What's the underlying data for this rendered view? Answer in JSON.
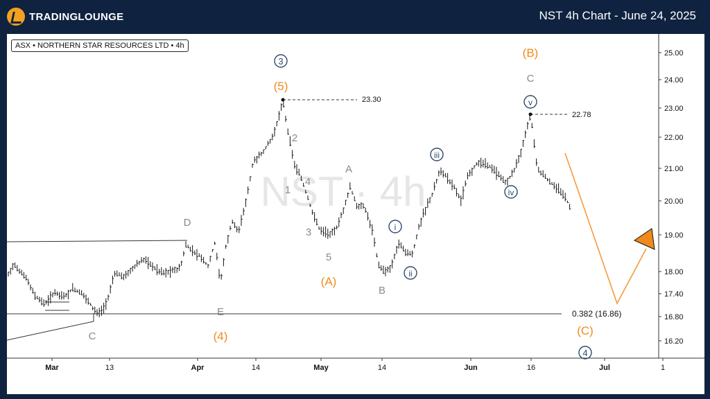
{
  "header": {
    "brand": "TRADINGLOUNGE",
    "title": "NST 4h Chart - June 24, 2025"
  },
  "chart_data": {
    "type": "candlestick",
    "symbol_label": "ASX • NORTHERN STAR RESOURCES LTD • 4h",
    "watermark": "NST · 4h",
    "x_ticks": [
      "Mar",
      "13",
      "Apr",
      "14",
      "May",
      "14",
      "Jun",
      "16",
      "Jul",
      "1"
    ],
    "y_ticks": [
      "25.00",
      "24.00",
      "23.00",
      "22.00",
      "21.00",
      "20.00",
      "19.00",
      "18.00",
      "17.40",
      "16.80",
      "16.20"
    ],
    "price_labels": [
      "23.30",
      "22.78",
      "0.382 (16.86)"
    ],
    "wave_labels": {
      "gray": [
        "D",
        "E",
        "C",
        "2",
        "1",
        "4",
        "3",
        "5",
        "A",
        "B",
        "C"
      ],
      "orange": [
        "(5)",
        "(4)",
        "(A)",
        "(B)",
        "(C)"
      ],
      "circled": [
        "3",
        "4"
      ],
      "roman": [
        "i",
        "ii",
        "iii",
        "iv",
        "v"
      ]
    },
    "levels": {
      "high1": 23.3,
      "high2": 22.78,
      "fib_target": 16.86
    },
    "colors": {
      "bull": "#26a69a",
      "bear": "#ef5350",
      "wave_orange": "#f08a1c",
      "wave_navy": "#2f4a6e",
      "wave_gray": "#8a8a8a"
    }
  }
}
